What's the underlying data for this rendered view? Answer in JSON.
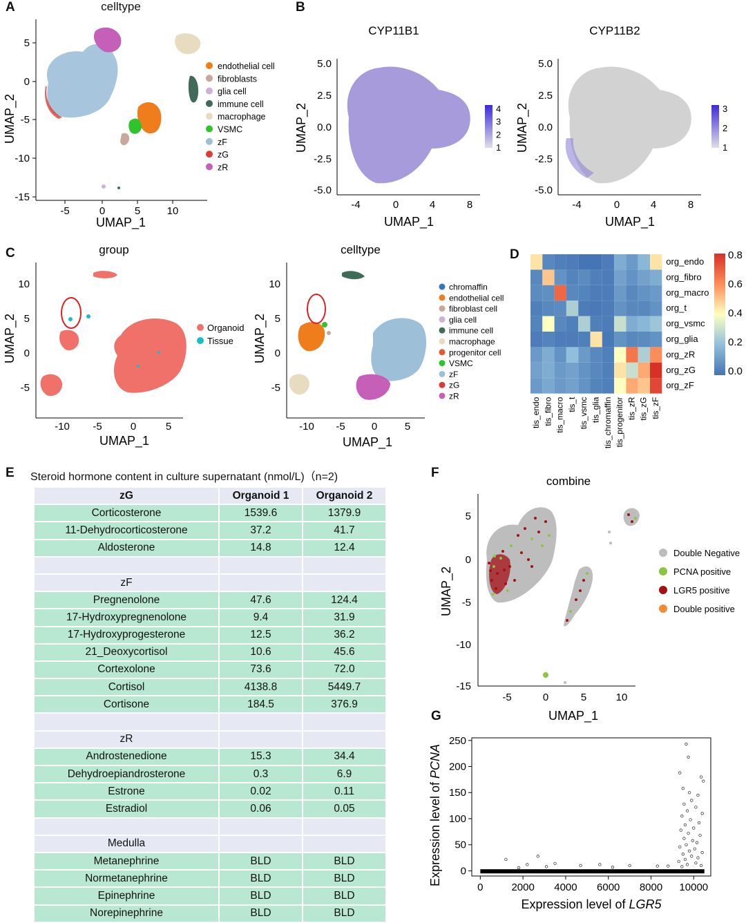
{
  "panels": {
    "A": {
      "letter": "A",
      "title": "celltype",
      "xlabel": "UMAP_1",
      "ylabel": "UMAP_2",
      "xticks": [
        "-5",
        "0",
        "5",
        "10"
      ],
      "yticks": [
        "5",
        "0",
        "-5",
        "-10",
        "-15"
      ],
      "legend": [
        {
          "label": "endothelial cell",
          "color": "#f07d1b"
        },
        {
          "label": "fibroblasts",
          "color": "#c8a89a"
        },
        {
          "label": "glia cell",
          "color": "#cbb2d6"
        },
        {
          "label": "immune cell",
          "color": "#3f6b58"
        },
        {
          "label": "macrophage",
          "color": "#e8dcc0"
        },
        {
          "label": "VSMC",
          "color": "#2fc32c"
        },
        {
          "label": "zF",
          "color": "#9dbfd8"
        },
        {
          "label": "zG",
          "color": "#de3b35"
        },
        {
          "label": "zR",
          "color": "#c65fb8"
        }
      ]
    },
    "B": {
      "letter": "B",
      "left": {
        "title": "CYP11B1",
        "xlabel": "UMAP_1",
        "ylabel": "UMAP_2",
        "xticks": [
          "-4",
          "0",
          "4",
          "8"
        ],
        "yticks": [
          "5.0",
          "2.5",
          "0.0",
          "-2.5",
          "-5.0"
        ],
        "scale": [
          "4",
          "3",
          "2",
          "1"
        ]
      },
      "right": {
        "title": "CYP11B2",
        "xlabel": "UMAP_1",
        "ylabel": "UMAP_2",
        "xticks": [
          "-4",
          "0",
          "4",
          "8"
        ],
        "yticks": [
          "5.0",
          "2.5",
          "0.0",
          "-2.5",
          "-5.0"
        ],
        "scale": [
          "3",
          "2",
          "1"
        ]
      }
    },
    "C": {
      "letter": "C",
      "left": {
        "title": "group",
        "xlabel": "UMAP_1",
        "ylabel": "UMAP_2",
        "xticks": [
          "-10",
          "-5",
          "0",
          "5"
        ],
        "yticks": [
          "10",
          "5",
          "0",
          "-5"
        ],
        "legend": [
          {
            "label": "Organoid",
            "color": "#f0706a"
          },
          {
            "label": "Tissue",
            "color": "#19bec4"
          }
        ]
      },
      "right": {
        "title": "celltype",
        "xlabel": "UMAP_1",
        "ylabel": "UMAP_2",
        "xticks": [
          "-10",
          "-5",
          "0",
          "5"
        ],
        "yticks": [
          "10",
          "5",
          "0",
          "-5"
        ],
        "legend": [
          {
            "label": "chromaffin",
            "color": "#3a74b8"
          },
          {
            "label": "endothelial cell",
            "color": "#f07d1b"
          },
          {
            "label": "fibroblast cell",
            "color": "#c8a89a"
          },
          {
            "label": "glia cell",
            "color": "#cbb2d6"
          },
          {
            "label": "immune cell",
            "color": "#3f6b58"
          },
          {
            "label": "macrophage",
            "color": "#e8dcc0"
          },
          {
            "label": "progenitor cell",
            "color": "#e05a3a"
          },
          {
            "label": "VSMC",
            "color": "#2fc32c"
          },
          {
            "label": "zF",
            "color": "#9dbfd8"
          },
          {
            "label": "zG",
            "color": "#de3b35"
          },
          {
            "label": "zR",
            "color": "#c65fb8"
          }
        ]
      }
    },
    "D": {
      "letter": "D",
      "rows": [
        "org_endo",
        "org_fibro",
        "org_macro",
        "org_t",
        "org_vsmc",
        "org_glia",
        "org_zR",
        "org_zG",
        "org_zF"
      ],
      "cols": [
        "tis_endo",
        "tis_fibro",
        "tis_macro",
        "tis_t",
        "tis_vsmc",
        "tis_glia",
        "tis_chromaffin",
        "tis_progenitor",
        "tis_zR",
        "tis_zG",
        "tis_zF"
      ],
      "matrix": [
        [
          0.45,
          0.05,
          0.03,
          0.02,
          0.0,
          0.0,
          0.02,
          0.15,
          0.1,
          0.18,
          0.45
        ],
        [
          0.05,
          0.5,
          0.08,
          0.04,
          0.06,
          0.03,
          0.02,
          0.12,
          0.08,
          0.12,
          0.15
        ],
        [
          0.06,
          0.07,
          0.68,
          0.05,
          0.04,
          0.02,
          0.02,
          0.1,
          0.05,
          0.08,
          0.1
        ],
        [
          0.03,
          0.05,
          0.06,
          0.25,
          0.02,
          0.01,
          0.02,
          0.08,
          0.05,
          0.05,
          0.08
        ],
        [
          0.04,
          0.4,
          0.05,
          0.03,
          0.25,
          0.03,
          0.02,
          0.3,
          0.15,
          0.18,
          0.22
        ],
        [
          0.02,
          0.04,
          0.02,
          0.02,
          0.03,
          0.45,
          0.01,
          0.08,
          0.05,
          0.06,
          0.08
        ],
        [
          0.1,
          0.15,
          0.08,
          0.2,
          0.1,
          0.05,
          0.03,
          0.4,
          0.65,
          0.25,
          0.6
        ],
        [
          0.12,
          0.15,
          0.1,
          0.12,
          0.08,
          0.05,
          0.03,
          0.45,
          0.3,
          0.55,
          0.82
        ],
        [
          0.1,
          0.14,
          0.1,
          0.12,
          0.08,
          0.04,
          0.03,
          0.4,
          0.55,
          0.5,
          0.75
        ]
      ],
      "scale_ticks": [
        "0.8",
        "0.6",
        "0.4",
        "0.2",
        "0.0"
      ]
    },
    "E": {
      "letter": "E",
      "title": "Steroid hormone content in culture supernatant (nmol/L)（n=2)",
      "header": [
        "zG",
        "Organoid 1",
        "Organoid 2"
      ],
      "rows": [
        {
          "type": "green",
          "cells": [
            "Corticosterone",
            "1539.6",
            "1379.9"
          ]
        },
        {
          "type": "green",
          "cells": [
            "11-Dehydrocorticosterone",
            "37.2",
            "41.7"
          ]
        },
        {
          "type": "green",
          "cells": [
            "Aldosterone",
            "14.8",
            "12.4"
          ]
        },
        {
          "type": "lav",
          "cells": [
            "",
            "",
            ""
          ]
        },
        {
          "type": "lav",
          "cells": [
            "zF",
            "",
            ""
          ]
        },
        {
          "type": "green",
          "cells": [
            "Pregnenolone",
            "47.6",
            "124.4"
          ]
        },
        {
          "type": "green",
          "cells": [
            "17-Hydroxypregnenolone",
            "9.4",
            "31.9"
          ]
        },
        {
          "type": "green",
          "cells": [
            "17-Hydroxyprogesterone",
            "12.5",
            "36.2"
          ]
        },
        {
          "type": "green",
          "cells": [
            "21_Deoxycortisol",
            "10.6",
            "45.6"
          ]
        },
        {
          "type": "green",
          "cells": [
            "Cortexolone",
            "73.6",
            "72.0"
          ]
        },
        {
          "type": "green",
          "cells": [
            "Cortisol",
            "4138.8",
            "5449.7"
          ]
        },
        {
          "type": "green",
          "cells": [
            "Cortisone",
            "184.5",
            "376.9"
          ]
        },
        {
          "type": "lav",
          "cells": [
            "",
            "",
            ""
          ]
        },
        {
          "type": "lav",
          "cells": [
            "zR",
            "",
            ""
          ]
        },
        {
          "type": "green",
          "cells": [
            "Androstenedione",
            "15.3",
            "34.4"
          ]
        },
        {
          "type": "green",
          "cells": [
            "Dehydroepiandrosterone",
            "0.3",
            "6.9"
          ]
        },
        {
          "type": "green",
          "cells": [
            "Estrone",
            "0.02",
            "0.11"
          ]
        },
        {
          "type": "green",
          "cells": [
            "Estradiol",
            "0.06",
            "0.05"
          ]
        },
        {
          "type": "lav",
          "cells": [
            "",
            "",
            ""
          ]
        },
        {
          "type": "lav",
          "cells": [
            "Medulla",
            "",
            ""
          ]
        },
        {
          "type": "green",
          "cells": [
            "Metanephrine",
            "BLD",
            "BLD"
          ]
        },
        {
          "type": "green",
          "cells": [
            "Normetanephrine",
            "BLD",
            "BLD"
          ]
        },
        {
          "type": "green",
          "cells": [
            "Epinephrine",
            "BLD",
            "BLD"
          ]
        },
        {
          "type": "green",
          "cells": [
            "Norepinephrine",
            "BLD",
            "BLD"
          ]
        }
      ]
    },
    "F": {
      "letter": "F",
      "title": "combine",
      "xlabel": "UMAP_1",
      "ylabel": "UMAP_2",
      "xticks": [
        "-5",
        "0",
        "5",
        "10"
      ],
      "yticks": [
        "5",
        "0",
        "-5",
        "-10",
        "-15"
      ],
      "legend": [
        {
          "label": "Double Negative",
          "color": "#bdbdbd"
        },
        {
          "label": "PCNA positive",
          "color": "#8cc63f"
        },
        {
          "label": "LGR5 positive",
          "color": "#a50f15"
        },
        {
          "label": "Double positive",
          "color": "#f28c38"
        }
      ]
    },
    "G": {
      "letter": "G",
      "xlabel_prefix": "Expression level of ",
      "xlabel_gene": "LGR5",
      "ylabel_prefix": "Expression level of ",
      "ylabel_gene": "PCNA",
      "xticks": [
        "0",
        "2000",
        "4000",
        "6000",
        "8000",
        "10000"
      ],
      "yticks": [
        "250",
        "200",
        "150",
        "100",
        "50",
        "0"
      ]
    }
  },
  "chart_data": {
    "type": "scatter",
    "x_label": "Expression level of LGR5",
    "y_label": "Expression level of PCNA",
    "xlim": [
      -400,
      10800
    ],
    "ylim": [
      -10,
      255
    ],
    "points": [
      [
        9650,
        243
      ],
      [
        9350,
        188
      ],
      [
        9750,
        218
      ],
      [
        10350,
        180
      ],
      [
        10450,
        172
      ],
      [
        9500,
        158
      ],
      [
        9800,
        150
      ],
      [
        10200,
        145
      ],
      [
        9900,
        135
      ],
      [
        9550,
        128
      ],
      [
        10100,
        122
      ],
      [
        9700,
        115
      ],
      [
        10400,
        110
      ],
      [
        9450,
        105
      ],
      [
        9850,
        98
      ],
      [
        10250,
        92
      ],
      [
        9600,
        88
      ],
      [
        10000,
        82
      ],
      [
        9400,
        78
      ],
      [
        9750,
        72
      ],
      [
        10300,
        68
      ],
      [
        9550,
        62
      ],
      [
        9950,
        58
      ],
      [
        10150,
        54
      ],
      [
        9650,
        50
      ],
      [
        9350,
        46
      ],
      [
        10050,
        42
      ],
      [
        9800,
        38
      ],
      [
        10400,
        35
      ],
      [
        9500,
        32
      ],
      [
        9900,
        28
      ],
      [
        10200,
        25
      ],
      [
        9600,
        22
      ],
      [
        9300,
        18
      ],
      [
        10100,
        15
      ],
      [
        9700,
        12
      ],
      [
        10350,
        10
      ],
      [
        9450,
        8
      ],
      [
        1200,
        22
      ],
      [
        2700,
        28
      ],
      [
        2200,
        12
      ],
      [
        3500,
        14
      ],
      [
        4700,
        10
      ],
      [
        5600,
        12
      ],
      [
        7000,
        10
      ],
      [
        8300,
        9
      ],
      [
        3100,
        8
      ],
      [
        1800,
        6
      ],
      [
        6200,
        7
      ],
      [
        8800,
        9
      ]
    ]
  }
}
